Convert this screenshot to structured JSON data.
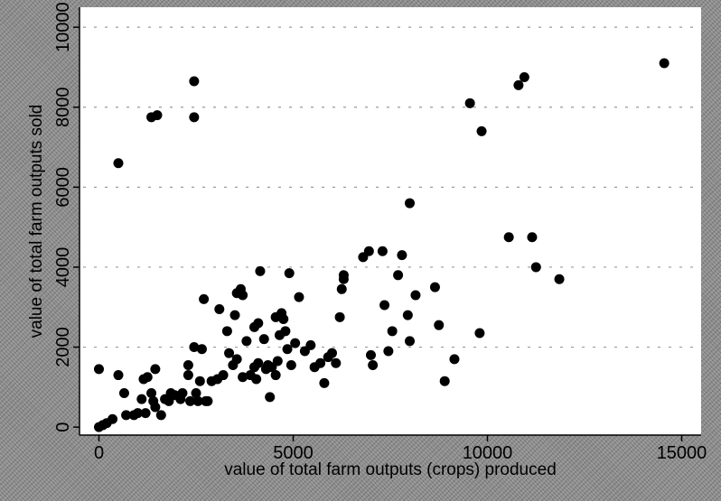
{
  "chart_data": {
    "type": "scatter",
    "title": "",
    "xlabel": "value of total farm outputs (crops) produced",
    "ylabel": "value of total farm outputs sold",
    "xlim": [
      -500,
      15500
    ],
    "ylim": [
      -200,
      10500
    ],
    "x_ticks": [
      0,
      5000,
      10000,
      15000
    ],
    "y_ticks": [
      0,
      2000,
      4000,
      6000,
      8000,
      10000
    ],
    "grid": true,
    "legend": "none",
    "colors": {
      "background": "#ffffff",
      "marker": "#000000",
      "grid": "#9a9a9a"
    },
    "points": [
      [
        0,
        0
      ],
      [
        100,
        50
      ],
      [
        200,
        100
      ],
      [
        350,
        200
      ],
      [
        0,
        1450
      ],
      [
        500,
        1300
      ],
      [
        650,
        850
      ],
      [
        700,
        300
      ],
      [
        900,
        300
      ],
      [
        1000,
        350
      ],
      [
        1100,
        700
      ],
      [
        1200,
        350
      ],
      [
        1150,
        1200
      ],
      [
        1250,
        1250
      ],
      [
        1350,
        850
      ],
      [
        1400,
        650
      ],
      [
        1450,
        500
      ],
      [
        1450,
        1450
      ],
      [
        1600,
        300
      ],
      [
        1700,
        700
      ],
      [
        1800,
        650
      ],
      [
        1850,
        850
      ],
      [
        1950,
        800
      ],
      [
        2100,
        700
      ],
      [
        2150,
        850
      ],
      [
        2300,
        1300
      ],
      [
        2300,
        1550
      ],
      [
        2350,
        650
      ],
      [
        2450,
        2000
      ],
      [
        2500,
        850
      ],
      [
        2550,
        650
      ],
      [
        2600,
        1150
      ],
      [
        2650,
        1950
      ],
      [
        2700,
        3200
      ],
      [
        2750,
        650
      ],
      [
        2800,
        650
      ],
      [
        2900,
        1150
      ],
      [
        3050,
        1200
      ],
      [
        3100,
        2950
      ],
      [
        3200,
        1300
      ],
      [
        3300,
        2400
      ],
      [
        3350,
        1850
      ],
      [
        3450,
        1550
      ],
      [
        3500,
        2800
      ],
      [
        3550,
        1700
      ],
      [
        3550,
        3350
      ],
      [
        3650,
        3450
      ],
      [
        3700,
        3300
      ],
      [
        3700,
        1250
      ],
      [
        3800,
        2150
      ],
      [
        3900,
        1300
      ],
      [
        4000,
        1500
      ],
      [
        4000,
        2500
      ],
      [
        4050,
        1200
      ],
      [
        4100,
        2600
      ],
      [
        4100,
        1600
      ],
      [
        4150,
        3900
      ],
      [
        4250,
        2200
      ],
      [
        4300,
        1450
      ],
      [
        4350,
        1550
      ],
      [
        4400,
        750
      ],
      [
        4450,
        1500
      ],
      [
        4550,
        1300
      ],
      [
        4550,
        2750
      ],
      [
        4600,
        1650
      ],
      [
        4650,
        2300
      ],
      [
        4700,
        2850
      ],
      [
        4750,
        2700
      ],
      [
        4800,
        2400
      ],
      [
        4850,
        1950
      ],
      [
        4900,
        3850
      ],
      [
        4950,
        1550
      ],
      [
        5050,
        2100
      ],
      [
        5150,
        3250
      ],
      [
        5300,
        1900
      ],
      [
        5450,
        2050
      ],
      [
        5550,
        1500
      ],
      [
        5700,
        1600
      ],
      [
        5800,
        1100
      ],
      [
        5900,
        1750
      ],
      [
        6000,
        1850
      ],
      [
        6100,
        1600
      ],
      [
        6200,
        2750
      ],
      [
        6250,
        3450
      ],
      [
        6300,
        3700
      ],
      [
        6300,
        3800
      ],
      [
        6800,
        4250
      ],
      [
        6950,
        4400
      ],
      [
        7000,
        1800
      ],
      [
        7050,
        1550
      ],
      [
        7300,
        4400
      ],
      [
        7350,
        3050
      ],
      [
        7450,
        1900
      ],
      [
        7550,
        2400
      ],
      [
        7700,
        3800
      ],
      [
        7800,
        4300
      ],
      [
        7950,
        2800
      ],
      [
        8000,
        2150
      ],
      [
        8150,
        3300
      ],
      [
        8650,
        3500
      ],
      [
        8750,
        2550
      ],
      [
        8900,
        1150
      ],
      [
        9150,
        1700
      ],
      [
        9800,
        2350
      ],
      [
        8000,
        5600
      ],
      [
        10550,
        4750
      ],
      [
        11150,
        4750
      ],
      [
        11250,
        4000
      ],
      [
        11850,
        3700
      ],
      [
        9550,
        8100
      ],
      [
        9850,
        7400
      ],
      [
        10800,
        8550
      ],
      [
        10950,
        8750
      ],
      [
        14550,
        9100
      ],
      [
        500,
        6600
      ],
      [
        1350,
        7750
      ],
      [
        1500,
        7800
      ],
      [
        2450,
        8650
      ],
      [
        2450,
        7750
      ]
    ]
  }
}
